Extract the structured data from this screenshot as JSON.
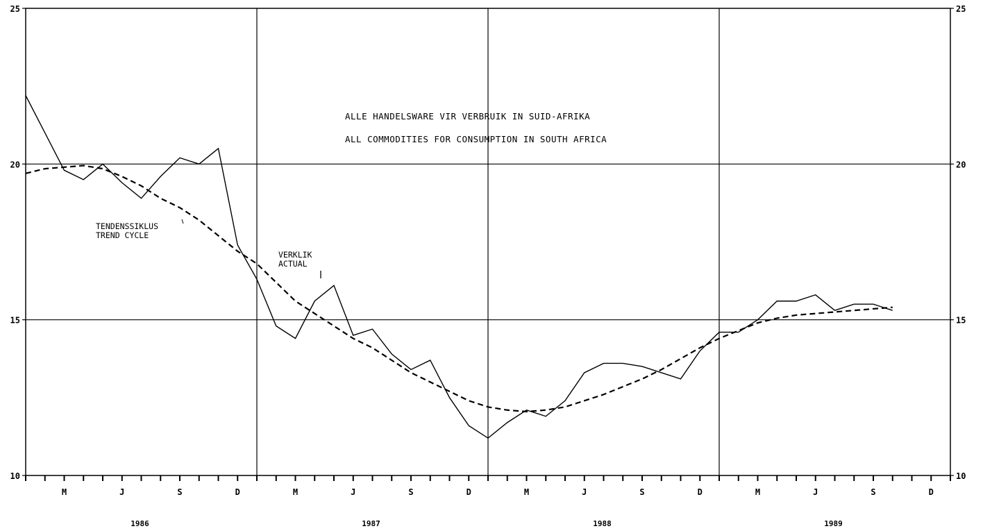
{
  "chart_data": {
    "type": "line",
    "title_lines": [
      "ALLE HANDELSWARE VIR VERBRUIK IN SUID-AFRIKA",
      "ALL COMMODITIES FOR CONSUMPTION IN SOUTH AFRICA"
    ],
    "xlabel": "",
    "ylabel": "",
    "ylim": [
      10,
      25
    ],
    "y_ticks": [
      "10",
      "15",
      "20",
      "25"
    ],
    "month_labels": [
      "M",
      "J",
      "S",
      "D",
      "M",
      "J",
      "S",
      "D",
      "M",
      "J",
      "S",
      "D",
      "M",
      "J",
      "S",
      "D"
    ],
    "years": [
      "1986",
      "1987",
      "1988",
      "1989"
    ],
    "grid": true,
    "series": [
      {
        "name": "VERKLIK ACTUAL",
        "style": "solid",
        "values": [
          22.2,
          21.0,
          19.8,
          19.5,
          20.0,
          19.4,
          18.9,
          19.6,
          20.2,
          20.0,
          20.5,
          17.4,
          16.3,
          14.8,
          14.4,
          15.6,
          16.1,
          14.5,
          14.7,
          13.9,
          13.4,
          13.7,
          12.5,
          11.6,
          11.2,
          11.7,
          12.1,
          11.9,
          12.4,
          13.3,
          13.6,
          13.6,
          13.5,
          13.3,
          13.1,
          14.0,
          14.6,
          14.6,
          15.0,
          15.6,
          15.6,
          15.8,
          15.3,
          15.5,
          15.5,
          15.3
        ]
      },
      {
        "name": "TENDENSSIKLUS TREND CYCLE",
        "style": "dashed",
        "values": [
          19.7,
          19.85,
          19.9,
          19.95,
          19.85,
          19.6,
          19.3,
          18.9,
          18.6,
          18.2,
          17.7,
          17.2,
          16.8,
          16.2,
          15.6,
          15.2,
          14.8,
          14.4,
          14.1,
          13.7,
          13.3,
          13.0,
          12.7,
          12.4,
          12.2,
          12.1,
          12.05,
          12.1,
          12.2,
          12.4,
          12.6,
          12.85,
          13.1,
          13.4,
          13.75,
          14.1,
          14.4,
          14.65,
          14.9,
          15.05,
          15.15,
          15.2,
          15.25,
          15.3,
          15.35,
          15.4
        ]
      }
    ],
    "annotations": [
      {
        "lines": [
          "TENDENSSIKLUS",
          "TREND CYCLE"
        ]
      },
      {
        "lines": [
          "VERKLIK",
          "ACTUAL"
        ]
      }
    ]
  }
}
